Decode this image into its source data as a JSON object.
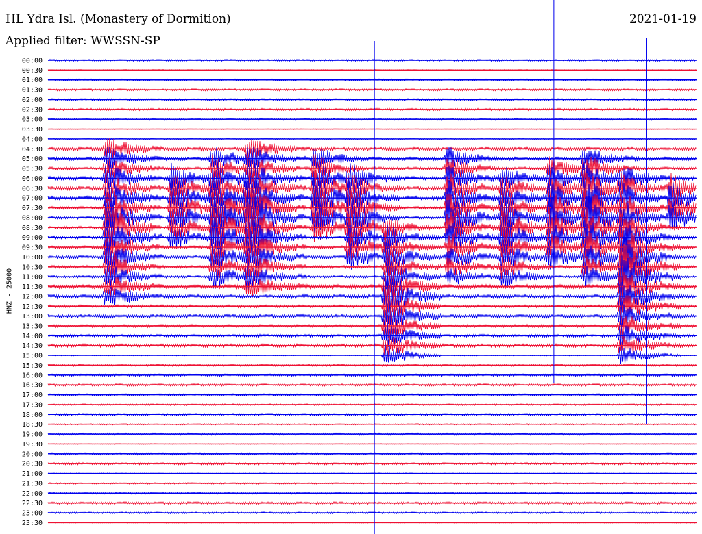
{
  "header": {
    "title": "HL Ydra Isl. (Monastery of Dormition)",
    "subtitle": "Applied filter: WWSSN-SP",
    "date": "2021-01-19"
  },
  "chart_data": {
    "type": "line",
    "title": "HL Ydra Isl. (Monastery of Dormition)",
    "ylabel": "HNZ - 25000",
    "row_labels": [
      "00:00",
      "00:30",
      "01:00",
      "01:30",
      "02:00",
      "02:30",
      "03:00",
      "03:30",
      "04:00",
      "04:30",
      "05:00",
      "05:30",
      "06:00",
      "06:30",
      "07:00",
      "07:30",
      "08:00",
      "08:30",
      "09:00",
      "09:30",
      "10:00",
      "10:30",
      "11:00",
      "11:30",
      "12:00",
      "12:30",
      "13:00",
      "13:30",
      "14:00",
      "14:30",
      "15:00",
      "15:30",
      "16:00",
      "16:30",
      "17:00",
      "17:30",
      "18:00",
      "18:30",
      "19:00",
      "19:30",
      "20:00",
      "20:30",
      "21:00",
      "21:30",
      "22:00",
      "22:30",
      "23:00",
      "23:30"
    ],
    "x_range_minutes": [
      0,
      30
    ],
    "colors": {
      "even_rows": "#0000ee",
      "odd_rows": "#ee1133",
      "text": "#000000"
    },
    "events": [
      {
        "minute": 2.7,
        "rows": [
          9,
          24
        ],
        "amp": 1.0,
        "width": 0.9
      },
      {
        "minute": 5.7,
        "rows": [
          12,
          18
        ],
        "amp": 0.8,
        "width": 0.8
      },
      {
        "minute": 7.6,
        "rows": [
          10,
          22
        ],
        "amp": 0.95,
        "width": 0.9
      },
      {
        "minute": 9.2,
        "rows": [
          9,
          23
        ],
        "amp": 1.0,
        "width": 1.0
      },
      {
        "minute": 12.3,
        "rows": [
          10,
          17
        ],
        "amp": 0.9,
        "width": 0.8
      },
      {
        "minute": 13.9,
        "rows": [
          12,
          20
        ],
        "amp": 0.85,
        "width": 0.8
      },
      {
        "minute": 15.6,
        "rows": [
          17,
          30
        ],
        "amp": 0.9,
        "width": 0.9
      },
      {
        "minute": 18.5,
        "rows": [
          10,
          22
        ],
        "amp": 0.9,
        "width": 0.8
      },
      {
        "minute": 21.0,
        "rows": [
          12,
          22
        ],
        "amp": 0.85,
        "width": 0.8
      },
      {
        "minute": 23.2,
        "rows": [
          11,
          20
        ],
        "amp": 0.8,
        "width": 0.8
      },
      {
        "minute": 24.8,
        "rows": [
          10,
          22
        ],
        "amp": 0.95,
        "width": 0.9
      },
      {
        "minute": 26.5,
        "rows": [
          12,
          30
        ],
        "amp": 1.0,
        "width": 1.0
      },
      {
        "minute": 28.8,
        "rows": [
          13,
          16
        ],
        "amp": 0.7,
        "width": 0.7
      }
    ]
  }
}
